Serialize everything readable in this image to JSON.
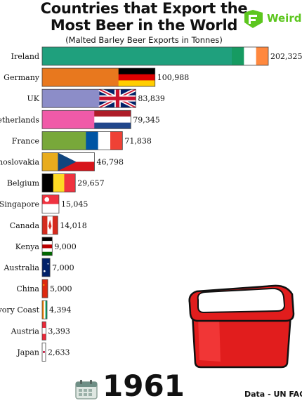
{
  "header": {
    "title_line1": "Countries that Export the",
    "title_line2": "Most Beer in the World",
    "subtitle": "(Malted Barley Beer Exports in Tonnes)",
    "logo_text": "Weird"
  },
  "footer": {
    "year": "1961",
    "source": "Data - UN FAO"
  },
  "icons": [
    "calendar-icon",
    "cooler-icon",
    "weird-logo-icon"
  ],
  "chart_data": {
    "type": "bar",
    "orientation": "horizontal",
    "categories": [
      "Ireland",
      "Germany",
      "UK",
      "Netherlands",
      "France",
      "choslovakia",
      "Belgium",
      "Singapore",
      "Canada",
      "Kenya",
      "Australia",
      "China",
      "Ivory Coast",
      "Austria",
      "Japan"
    ],
    "values": [
      202325,
      100988,
      83839,
      79345,
      71838,
      46798,
      29657,
      15045,
      14018,
      9000,
      7000,
      5000,
      4394,
      3393,
      2633
    ],
    "value_labels": [
      "202,325",
      "100,988",
      "83,839",
      "79,345",
      "71,838",
      "46,798",
      "29,657",
      "15,045",
      "14,018",
      "9,000",
      "7,000",
      "5,000",
      "4,394",
      "3,393",
      "2,633"
    ],
    "bar_colors": [
      "#1fa07d",
      "#e8781e",
      "#8c8dc8",
      "#f05aa8",
      "#78a83a",
      "#e8ac1e",
      "#a07838",
      "#ee3d44",
      "#ee2e2e",
      "#2e2e2e",
      "#1b2f8c",
      "#d73030",
      "#1f9e7a",
      "#d42d2d",
      "#ffffff"
    ],
    "flags": [
      "ireland",
      "germany",
      "uk",
      "netherlands",
      "france",
      "czechoslovakia",
      "belgium",
      "singapore",
      "canada",
      "kenya",
      "australia",
      "china",
      "ivory-coast",
      "austria",
      "japan"
    ],
    "xlim": [
      0,
      202325
    ],
    "grid": false,
    "legend": "none"
  }
}
